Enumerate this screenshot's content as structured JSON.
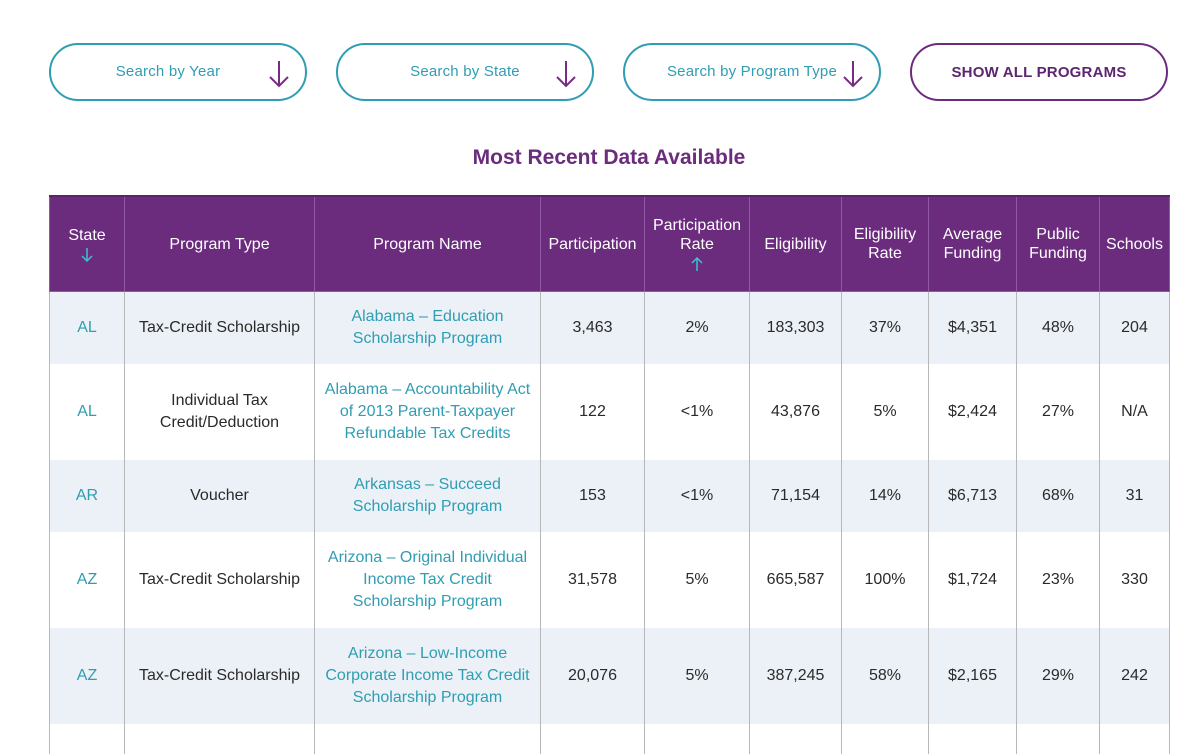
{
  "filters": {
    "year_label": "Search by Year",
    "state_label": "Search by State",
    "program_type_label": "Search by Program Type",
    "show_all_label": "SHOW ALL PROGRAMS"
  },
  "section_title": "Most Recent Data Available",
  "colors": {
    "accent_purple": "#6b2c7e",
    "accent_teal": "#2f9db2",
    "row_shade": "#ecf1f7"
  },
  "table": {
    "headers": {
      "state": "State",
      "program_type": "Program Type",
      "program_name": "Program Name",
      "participation": "Participation",
      "participation_rate": "Participation Rate",
      "eligibility": "Eligibility",
      "eligibility_rate": "Eligibility Rate",
      "average_funding": "Average Funding",
      "public_funding": "Public Funding",
      "schools": "Schools"
    },
    "rows": [
      {
        "state": "AL",
        "program_type": "Tax-Credit Scholarship",
        "program_name": "Alabama – Education Scholarship Program",
        "participation": "3,463",
        "participation_rate": "2%",
        "eligibility": "183,303",
        "eligibility_rate": "37%",
        "average_funding": "$4,351",
        "public_funding": "48%",
        "schools": "204"
      },
      {
        "state": "AL",
        "program_type": "Individual Tax Credit/Deduction",
        "program_name": "Alabama – Accountability Act of 2013 Parent-Taxpayer Refundable Tax Credits",
        "participation": "122",
        "participation_rate": "<1%",
        "eligibility": "43,876",
        "eligibility_rate": "5%",
        "average_funding": "$2,424",
        "public_funding": "27%",
        "schools": "N/A"
      },
      {
        "state": "AR",
        "program_type": "Voucher",
        "program_name": "Arkansas – Succeed Scholarship Program",
        "participation": "153",
        "participation_rate": "<1%",
        "eligibility": "71,154",
        "eligibility_rate": "14%",
        "average_funding": "$6,713",
        "public_funding": "68%",
        "schools": "31"
      },
      {
        "state": "AZ",
        "program_type": "Tax-Credit Scholarship",
        "program_name": "Arizona – Original Individual Income Tax Credit Scholarship Program",
        "participation": "31,578",
        "participation_rate": "5%",
        "eligibility": "665,587",
        "eligibility_rate": "100%",
        "average_funding": "$1,724",
        "public_funding": "23%",
        "schools": "330"
      },
      {
        "state": "AZ",
        "program_type": "Tax-Credit Scholarship",
        "program_name": "Arizona – Low-Income Corporate Income Tax Credit Scholarship Program",
        "participation": "20,076",
        "participation_rate": "5%",
        "eligibility": "387,245",
        "eligibility_rate": "58%",
        "average_funding": "$2,165",
        "public_funding": "29%",
        "schools": "242"
      }
    ]
  }
}
